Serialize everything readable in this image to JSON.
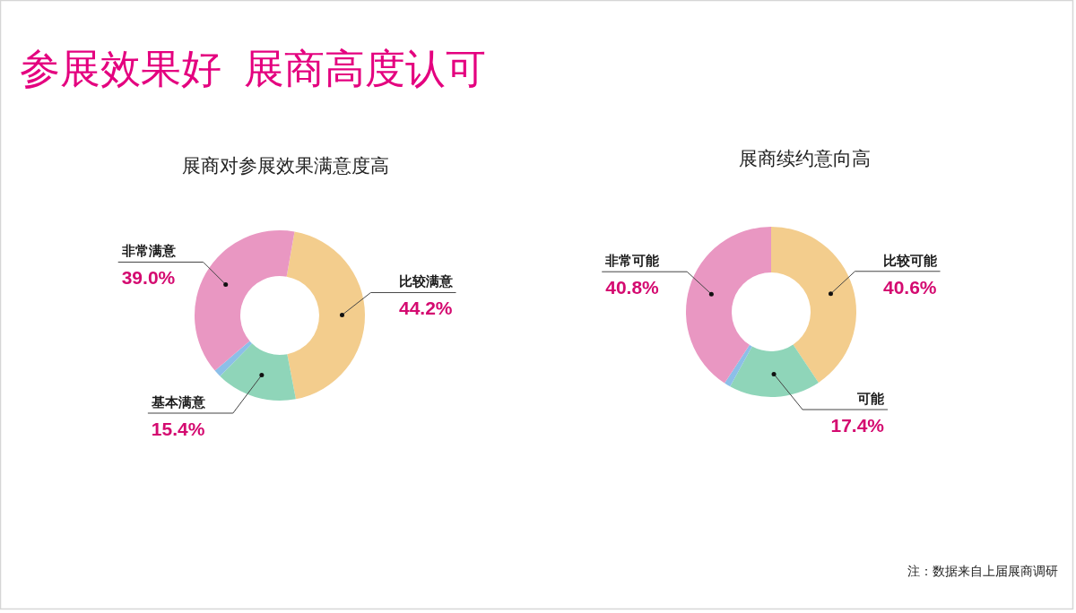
{
  "chart_data": [
    {
      "type": "donut",
      "title": "展商对参展效果满意度高",
      "categories": [
        "比较满意",
        "基本满意",
        null,
        "非常满意"
      ],
      "values": [
        44.2,
        15.4,
        1.4,
        39.0
      ],
      "value_labels": [
        "44.2%",
        "15.4%",
        null,
        "39.0%"
      ],
      "colors": [
        "#f3cd8d",
        "#8fd5b9",
        "#8cbfe8",
        "#e997c2"
      ]
    },
    {
      "type": "donut",
      "title": "展商续约意向高",
      "categories": [
        "比较可能",
        "可能",
        null,
        "非常可能"
      ],
      "values": [
        40.6,
        17.4,
        1.2,
        40.8
      ],
      "value_labels": [
        "40.6%",
        "17.4%",
        null,
        "40.8%"
      ],
      "colors": [
        "#f3cd8d",
        "#8fd5b9",
        "#8cbfe8",
        "#e997c2"
      ]
    },
    {
      "type": "other",
      "title": "参展效果好  展商高度认可",
      "annotations": [
        "注：数据来自上届展商调研"
      ]
    }
  ]
}
